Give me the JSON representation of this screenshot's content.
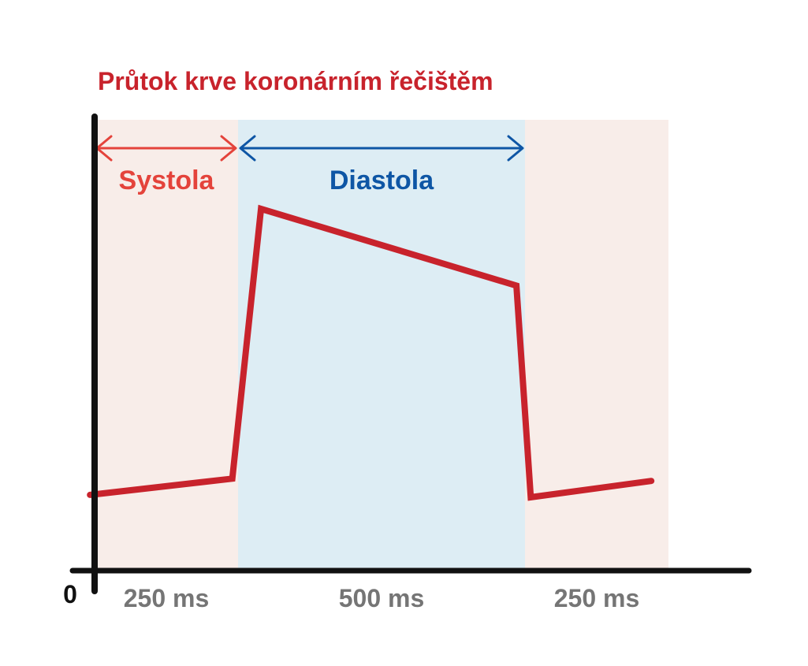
{
  "chart_data": {
    "type": "line",
    "title": "Průtok krve koronárním řečištěm",
    "origin_label": "0",
    "x_unit": "ms",
    "x_range": [
      0,
      1000
    ],
    "y_range": [
      0,
      100
    ],
    "phases": [
      {
        "name": "Systola",
        "label": "Systola",
        "start": 0,
        "end": 250,
        "fill": "#f8ede9",
        "color": "#e4433b"
      },
      {
        "name": "Diastola",
        "label": "Diastola",
        "start": 250,
        "end": 750,
        "fill": "#ddedf4",
        "color": "#0e56a5"
      },
      {
        "name": "Systola-2",
        "label": "",
        "start": 750,
        "end": 1000,
        "fill": "#f8ede9",
        "color": "#e4433b"
      }
    ],
    "tick_labels": [
      {
        "text": "250 ms",
        "center": 125
      },
      {
        "text": "500 ms",
        "center": 500
      },
      {
        "text": "250 ms",
        "center": 875
      }
    ],
    "series": [
      {
        "color": "#c8232c",
        "points": [
          {
            "x": -8,
            "y": 19
          },
          {
            "x": 240,
            "y": 22.5
          },
          {
            "x": 290,
            "y": 80.5
          },
          {
            "x": 735,
            "y": 64
          },
          {
            "x": 760,
            "y": 18.5
          },
          {
            "x": 970,
            "y": 22
          }
        ]
      }
    ],
    "colors": {
      "title": "#c8232c",
      "axis": "#111111",
      "tick_label": "#757575"
    }
  }
}
